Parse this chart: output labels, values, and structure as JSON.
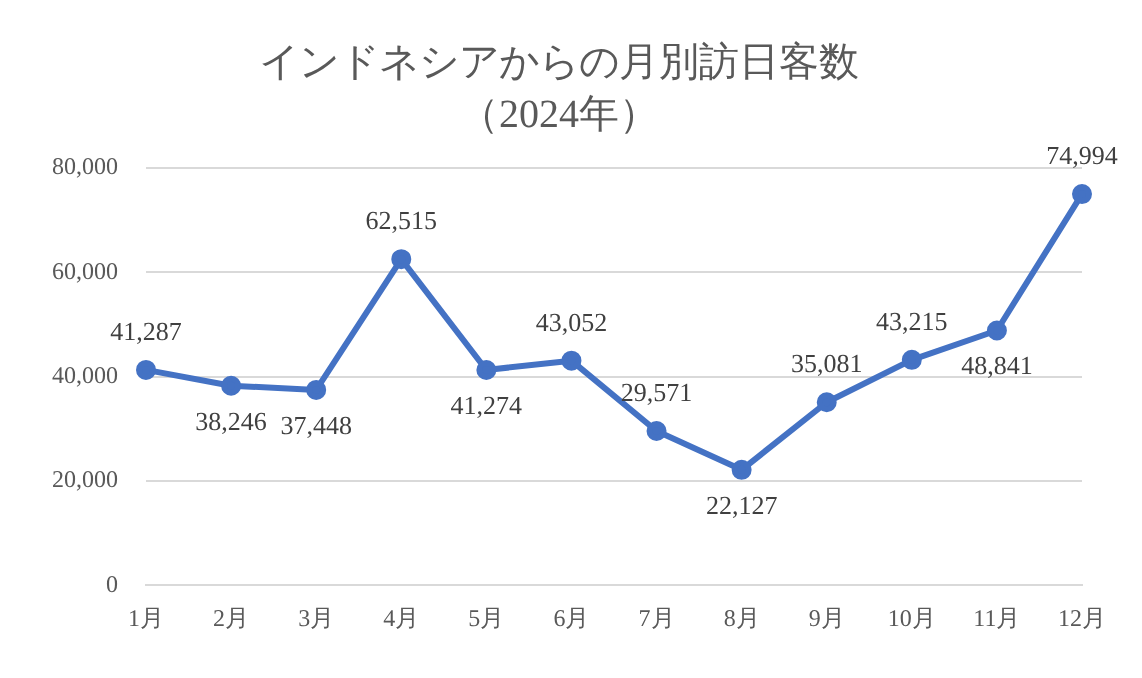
{
  "chart_data": {
    "type": "line",
    "title": "インドネシアからの月別訪日客数",
    "subtitle": "（2024年）",
    "categories": [
      "1月",
      "2月",
      "3月",
      "4月",
      "5月",
      "6月",
      "7月",
      "8月",
      "9月",
      "10月",
      "11月",
      "12月"
    ],
    "series": [
      {
        "color": "#4472c4",
        "values": [
          41287,
          38246,
          37448,
          62515,
          41274,
          43052,
          29571,
          22127,
          35081,
          43215,
          48841,
          74994
        ],
        "value_labels": [
          "41,287",
          "38,246",
          "37,448",
          "62,515",
          "41,274",
          "43,052",
          "29,571",
          "22,127",
          "35,081",
          "43,215",
          "48,841",
          "74,994"
        ]
      }
    ],
    "ylim": [
      0,
      80000
    ],
    "yticks": [
      {
        "value": 0,
        "label": "0"
      },
      {
        "value": 20000,
        "label": "20,000"
      },
      {
        "value": 40000,
        "label": "40,000"
      },
      {
        "value": 60000,
        "label": "60,000"
      },
      {
        "value": 80000,
        "label": "80,000"
      }
    ],
    "grid": "y",
    "legend": false,
    "marker": "circle",
    "line_style": "solid"
  }
}
